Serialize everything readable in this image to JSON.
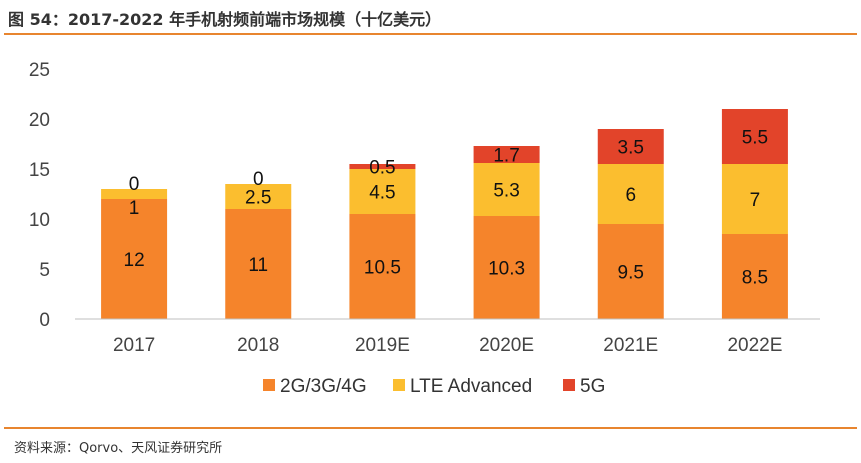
{
  "title": "图 54：2017-2022 年手机射频前端市场规模（十亿美元）",
  "source": "资料来源：Qorvo、天风证券研究所",
  "chart_data": {
    "type": "bar",
    "stacked": true,
    "title": "图 54：2017-2022 年手机射频前端市场规模（十亿美元）",
    "xlabel": "",
    "ylabel": "",
    "ylim": [
      0,
      25
    ],
    "yticks": [
      0,
      5,
      10,
      15,
      20,
      25
    ],
    "grid": false,
    "legend_position": "bottom",
    "categories": [
      "2017",
      "2018",
      "2019E",
      "2020E",
      "2021E",
      "2022E"
    ],
    "series": [
      {
        "name": "2G/3G/4G",
        "color": "#F5842B",
        "values": [
          12,
          11,
          10.5,
          10.3,
          9.5,
          8.5
        ]
      },
      {
        "name": "LTE Advanced",
        "color": "#FBBE2F",
        "values": [
          1,
          2.5,
          4.5,
          5.3,
          6,
          7
        ]
      },
      {
        "name": "5G",
        "color": "#E2442A",
        "values": [
          0,
          0,
          0.5,
          1.7,
          3.5,
          5.5
        ]
      }
    ]
  }
}
